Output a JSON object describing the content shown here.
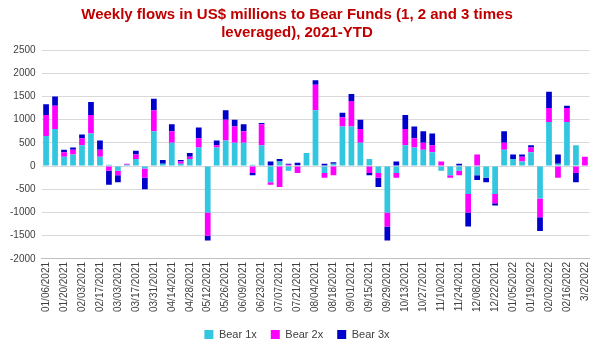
{
  "chart_data": {
    "type": "bar",
    "title": "Weekly flows in US$ millions to Bear Funds (1, 2 and 3 times leveraged), 2021-YTD",
    "categories": [
      "01/06/2021",
      null,
      "01/20/2021",
      null,
      "02/03/2021",
      null,
      "02/17/2021",
      null,
      "03/03/2021",
      null,
      "03/17/2021",
      null,
      "03/31/2021",
      null,
      "04/14/2021",
      null,
      "04/28/2021",
      null,
      "05/12/2021",
      null,
      "05/26/2021",
      null,
      "06/09/2021",
      null,
      "06/23/2021",
      null,
      "07/07/2021",
      null,
      "07/21/2021",
      null,
      "08/04/2021",
      null,
      "08/18/2021",
      null,
      "09/01/2021",
      null,
      "09/15/2021",
      null,
      "09/29/2021",
      null,
      "10/13/2021",
      null,
      "10/27/2021",
      null,
      "11/10/2021",
      null,
      "11/24/2021",
      null,
      "12/08/2021",
      null,
      "12/22/2021",
      null,
      "01/05/2022",
      null,
      "01/19/2022",
      null,
      "02/02/2022",
      null,
      "02/16/2022",
      null,
      "3/2/2022"
    ],
    "series": [
      {
        "name": "Bear 1x",
        "color": "#33c6e0",
        "values": [
          650,
          800,
          200,
          250,
          450,
          700,
          200,
          30,
          -100,
          30,
          150,
          -50,
          750,
          50,
          500,
          50,
          150,
          400,
          -1000,
          400,
          550,
          500,
          500,
          30,
          450,
          -350,
          100,
          -100,
          20,
          280,
          1200,
          -150,
          50,
          850,
          850,
          500,
          150,
          -150,
          -1000,
          -150,
          450,
          400,
          350,
          300,
          -100,
          -200,
          -100,
          -600,
          -200,
          -250,
          -600,
          350,
          150,
          100,
          300,
          -700,
          950,
          50,
          950,
          450,
          0
        ]
      },
      {
        "name": "Bear 2x",
        "color": "#ff00ff",
        "values": [
          450,
          500,
          100,
          100,
          150,
          400,
          150,
          -100,
          -100,
          20,
          100,
          -200,
          450,
          0,
          250,
          50,
          50,
          200,
          -500,
          50,
          450,
          350,
          250,
          -150,
          450,
          -50,
          -450,
          30,
          -150,
          0,
          550,
          -100,
          -200,
          200,
          550,
          300,
          -150,
          -100,
          -300,
          -100,
          350,
          200,
          150,
          150,
          100,
          -50,
          -100,
          -400,
          250,
          0,
          -200,
          150,
          0,
          100,
          100,
          -400,
          300,
          -250,
          300,
          -150,
          200
        ]
      },
      {
        "name": "Bear 3x",
        "color": "#0000cc",
        "values": [
          230,
          200,
          50,
          50,
          80,
          280,
          200,
          -300,
          -150,
          0,
          80,
          -250,
          250,
          80,
          150,
          30,
          80,
          230,
          -100,
          100,
          200,
          150,
          150,
          -50,
          30,
          100,
          50,
          20,
          50,
          0,
          100,
          50,
          30,
          100,
          150,
          200,
          -50,
          -200,
          -300,
          100,
          300,
          250,
          250,
          250,
          0,
          0,
          50,
          -300,
          -100,
          -100,
          -50,
          250,
          100,
          50,
          50,
          -300,
          350,
          200,
          50,
          -200,
          0
        ]
      }
    ],
    "ylim": [
      -2000,
      2500
    ],
    "yticks": [
      -2000,
      -1500,
      -1000,
      -500,
      0,
      500,
      1000,
      1500,
      2000,
      2500
    ],
    "grid": true,
    "stacked": true,
    "legend": "bottom"
  }
}
